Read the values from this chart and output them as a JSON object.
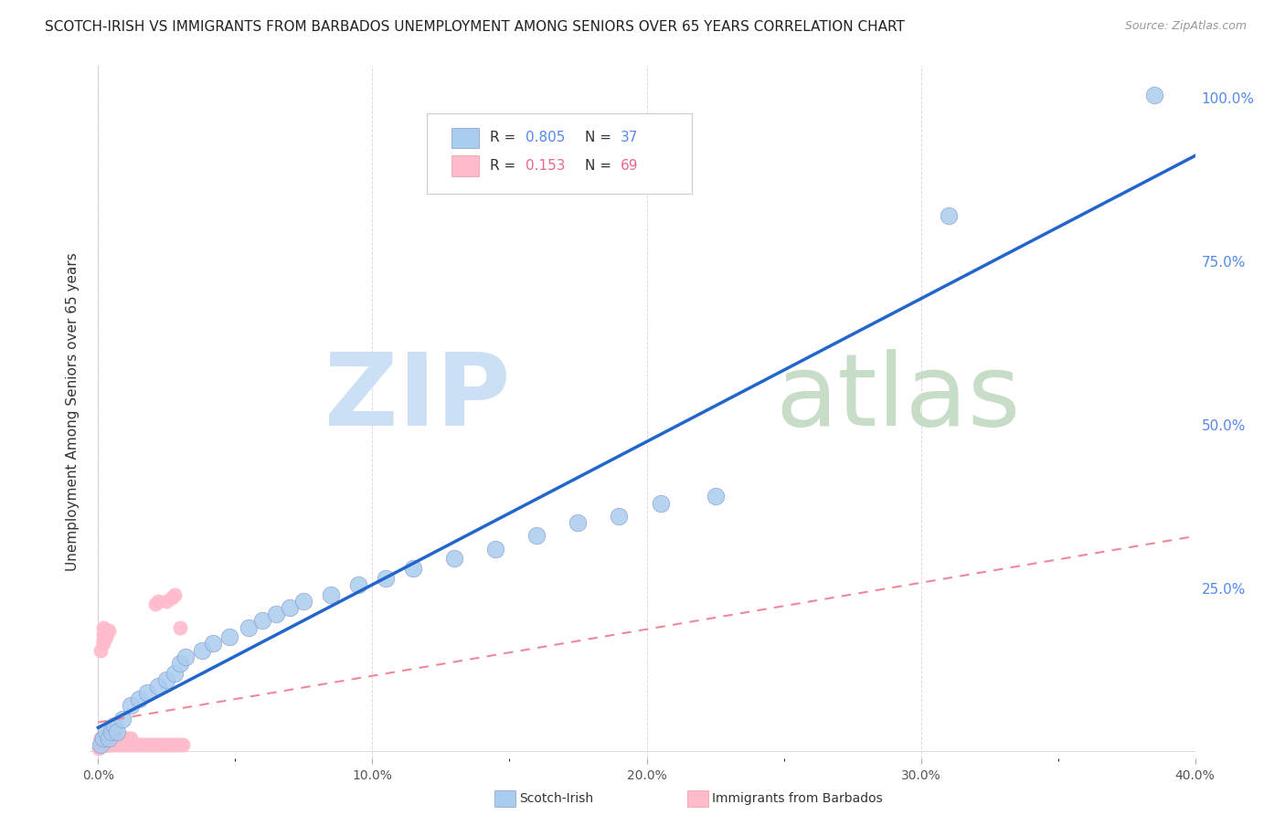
{
  "title": "SCOTCH-IRISH VS IMMIGRANTS FROM BARBADOS UNEMPLOYMENT AMONG SENIORS OVER 65 YEARS CORRELATION CHART",
  "source": "Source: ZipAtlas.com",
  "ylabel": "Unemployment Among Seniors over 65 years",
  "x_tick_labels": [
    "0.0%",
    "",
    "10.0%",
    "",
    "20.0%",
    "",
    "30.0%",
    "",
    "40.0%"
  ],
  "x_tick_values": [
    0.0,
    0.05,
    0.1,
    0.15,
    0.2,
    0.25,
    0.3,
    0.35,
    0.4
  ],
  "x_tick_labels_shown": [
    "0.0%",
    "10.0%",
    "20.0%",
    "30.0%",
    "40.0%"
  ],
  "x_tick_values_shown": [
    0.0,
    0.1,
    0.2,
    0.3,
    0.4
  ],
  "y_tick_labels": [
    "100.0%",
    "75.0%",
    "50.0%",
    "25.0%"
  ],
  "y_tick_values": [
    1.0,
    0.75,
    0.5,
    0.25
  ],
  "xlim": [
    -0.003,
    0.4
  ],
  "ylim": [
    -0.01,
    1.05
  ],
  "background_color": "#ffffff",
  "grid_color": "#cccccc",
  "legend_R_blue": "0.805",
  "legend_N_blue": "37",
  "legend_R_pink": "0.153",
  "legend_N_pink": "69",
  "scotch_irish_color": "#aaccee",
  "barbados_color": "#ffbbcc",
  "trendline_blue_color": "#2266cc",
  "trendline_pink_color": "#ee8899",
  "watermark_zip_color": "#cce0f5",
  "watermark_atlas_color": "#c8ddc8",
  "scotch_irish_x": [
    0.001,
    0.002,
    0.003,
    0.004,
    0.005,
    0.006,
    0.007,
    0.009,
    0.012,
    0.015,
    0.018,
    0.022,
    0.025,
    0.028,
    0.03,
    0.032,
    0.038,
    0.042,
    0.048,
    0.055,
    0.06,
    0.065,
    0.07,
    0.075,
    0.085,
    0.095,
    0.105,
    0.115,
    0.13,
    0.145,
    0.16,
    0.175,
    0.19,
    0.205,
    0.225,
    0.31,
    0.385
  ],
  "scotch_irish_y": [
    0.01,
    0.02,
    0.03,
    0.02,
    0.03,
    0.04,
    0.03,
    0.05,
    0.07,
    0.08,
    0.09,
    0.1,
    0.11,
    0.12,
    0.135,
    0.145,
    0.155,
    0.165,
    0.175,
    0.19,
    0.2,
    0.21,
    0.22,
    0.23,
    0.24,
    0.255,
    0.265,
    0.28,
    0.295,
    0.31,
    0.33,
    0.35,
    0.36,
    0.38,
    0.39,
    0.82,
    1.005
  ],
  "barbados_x": [
    0.0003,
    0.0005,
    0.0007,
    0.001,
    0.001,
    0.001,
    0.001,
    0.002,
    0.002,
    0.002,
    0.002,
    0.003,
    0.003,
    0.003,
    0.003,
    0.004,
    0.004,
    0.004,
    0.005,
    0.005,
    0.005,
    0.005,
    0.006,
    0.006,
    0.007,
    0.007,
    0.008,
    0.009,
    0.009,
    0.01,
    0.01,
    0.011,
    0.011,
    0.012,
    0.012,
    0.013,
    0.014,
    0.015,
    0.016,
    0.017,
    0.018,
    0.019,
    0.02,
    0.021,
    0.022,
    0.023,
    0.024,
    0.025,
    0.026,
    0.027,
    0.028,
    0.029,
    0.03,
    0.031,
    0.001,
    0.002,
    0.003,
    0.002,
    0.003,
    0.002,
    0.003,
    0.004,
    0.002,
    0.021,
    0.022,
    0.025,
    0.027,
    0.028,
    0.03
  ],
  "barbados_y": [
    0.005,
    0.008,
    0.01,
    0.01,
    0.02,
    0.02,
    0.01,
    0.01,
    0.02,
    0.01,
    0.02,
    0.01,
    0.02,
    0.01,
    0.02,
    0.01,
    0.02,
    0.01,
    0.01,
    0.02,
    0.01,
    0.02,
    0.01,
    0.02,
    0.01,
    0.02,
    0.01,
    0.01,
    0.02,
    0.01,
    0.02,
    0.01,
    0.02,
    0.01,
    0.02,
    0.01,
    0.01,
    0.01,
    0.01,
    0.01,
    0.01,
    0.01,
    0.01,
    0.01,
    0.01,
    0.01,
    0.01,
    0.01,
    0.01,
    0.01,
    0.01,
    0.01,
    0.01,
    0.01,
    0.155,
    0.165,
    0.175,
    0.17,
    0.18,
    0.19,
    0.185,
    0.185,
    0.18,
    0.225,
    0.23,
    0.23,
    0.235,
    0.24,
    0.19
  ]
}
